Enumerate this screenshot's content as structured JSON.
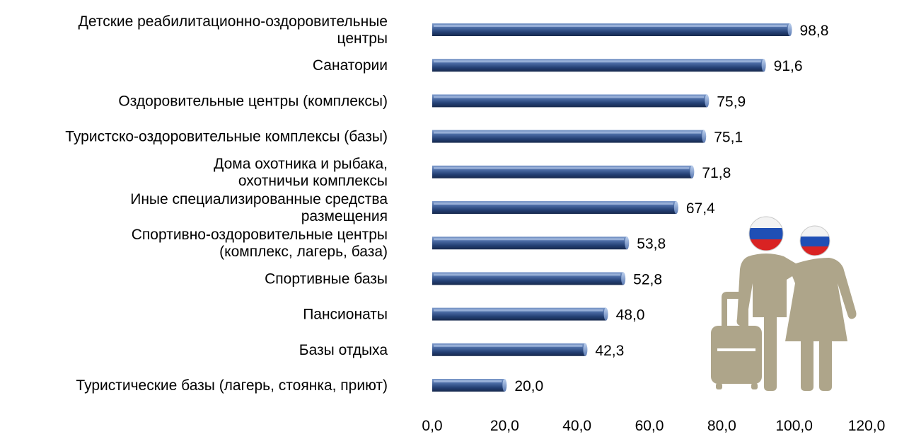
{
  "chart_data": {
    "type": "bar",
    "orientation": "horizontal",
    "title": "",
    "xlabel": "",
    "ylabel": "",
    "xlim": [
      0,
      120
    ],
    "ticks": [
      "0,0",
      "20,0",
      "40,0",
      "60,0",
      "80,0",
      "100,0",
      "120,0"
    ],
    "tick_values": [
      0,
      20,
      40,
      60,
      80,
      100,
      120
    ],
    "grid": false,
    "legend": "none",
    "bar_color": "#1f3864",
    "bar_highlight": "#8ea9db",
    "decoration_color": "#aea58a",
    "categories": [
      {
        "lines": [
          "Детские реабилитационно-оздоровительные",
          "центры"
        ],
        "value": 98.8,
        "label": "98,8"
      },
      {
        "lines": [
          "Санатории"
        ],
        "value": 91.6,
        "label": "91,6"
      },
      {
        "lines": [
          "Оздоровительные центры (комплексы)"
        ],
        "value": 75.9,
        "label": "75,9"
      },
      {
        "lines": [
          "Туристско-оздоровительные комплексы (базы)"
        ],
        "value": 75.1,
        "label": "75,1"
      },
      {
        "lines": [
          "Дома охотника и рыбака,",
          "охотничьи комплексы"
        ],
        "value": 71.8,
        "label": "71,8"
      },
      {
        "lines": [
          "Иные специализированные средства",
          "размещения"
        ],
        "value": 67.4,
        "label": "67,4"
      },
      {
        "lines": [
          "Спортивно-оздоровительные центры",
          "(комплекс, лагерь, база)"
        ],
        "value": 53.8,
        "label": "53,8"
      },
      {
        "lines": [
          "Спортивные базы"
        ],
        "value": 52.8,
        "label": "52,8"
      },
      {
        "lines": [
          "Пансионаты"
        ],
        "value": 48.0,
        "label": "48,0"
      },
      {
        "lines": [
          "Базы отдыха"
        ],
        "value": 42.3,
        "label": "42,3"
      },
      {
        "lines": [
          "Туристические базы (лагерь, стоянка, приют)"
        ],
        "value": 20.0,
        "label": "20,0"
      }
    ]
  }
}
